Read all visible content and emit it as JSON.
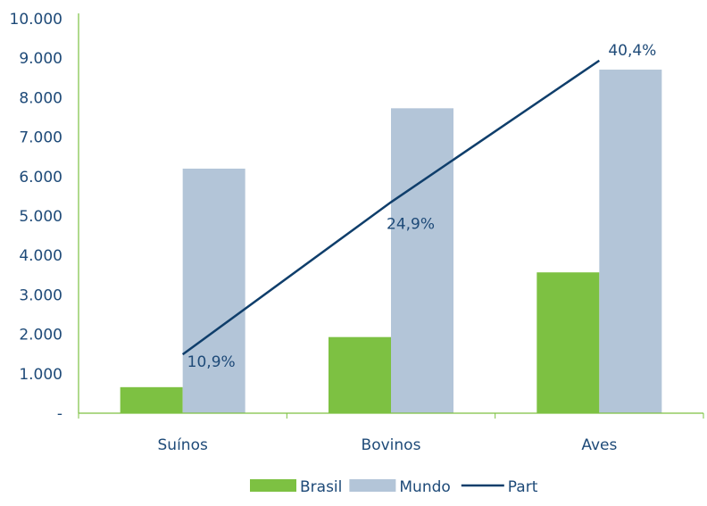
{
  "chart_data": {
    "type": "bar",
    "categories": [
      "Suínos",
      "Bovinos",
      "Aves"
    ],
    "series": [
      {
        "name": "Brasil",
        "type": "bar",
        "values": [
          660,
          1930,
          3570
        ],
        "color": "#7dc142"
      },
      {
        "name": "Mundo",
        "type": "bar",
        "values": [
          6200,
          7730,
          8710
        ],
        "color": "#b3c5d8"
      },
      {
        "name": "Part",
        "type": "line",
        "values": [
          1490,
          5350,
          8940
        ],
        "labels": [
          "10,9%",
          "24,9%",
          "40,4%"
        ],
        "color": "#0f3e6b"
      }
    ],
    "ylim": [
      0,
      10000
    ],
    "yticks": [
      0,
      1000,
      2000,
      3000,
      4000,
      5000,
      6000,
      7000,
      8000,
      9000,
      10000
    ],
    "ytick_labels": [
      "-",
      "1.000",
      "2.000",
      "3.000",
      "4.000",
      "5.000",
      "6.000",
      "7.000",
      "8.000",
      "9.000",
      "10.000"
    ],
    "grid": false,
    "legend_position": "bottom-center",
    "title": "",
    "xlabel": "",
    "ylabel": ""
  },
  "colors": {
    "axis": "#7dc142",
    "text": "#1e4a78"
  }
}
